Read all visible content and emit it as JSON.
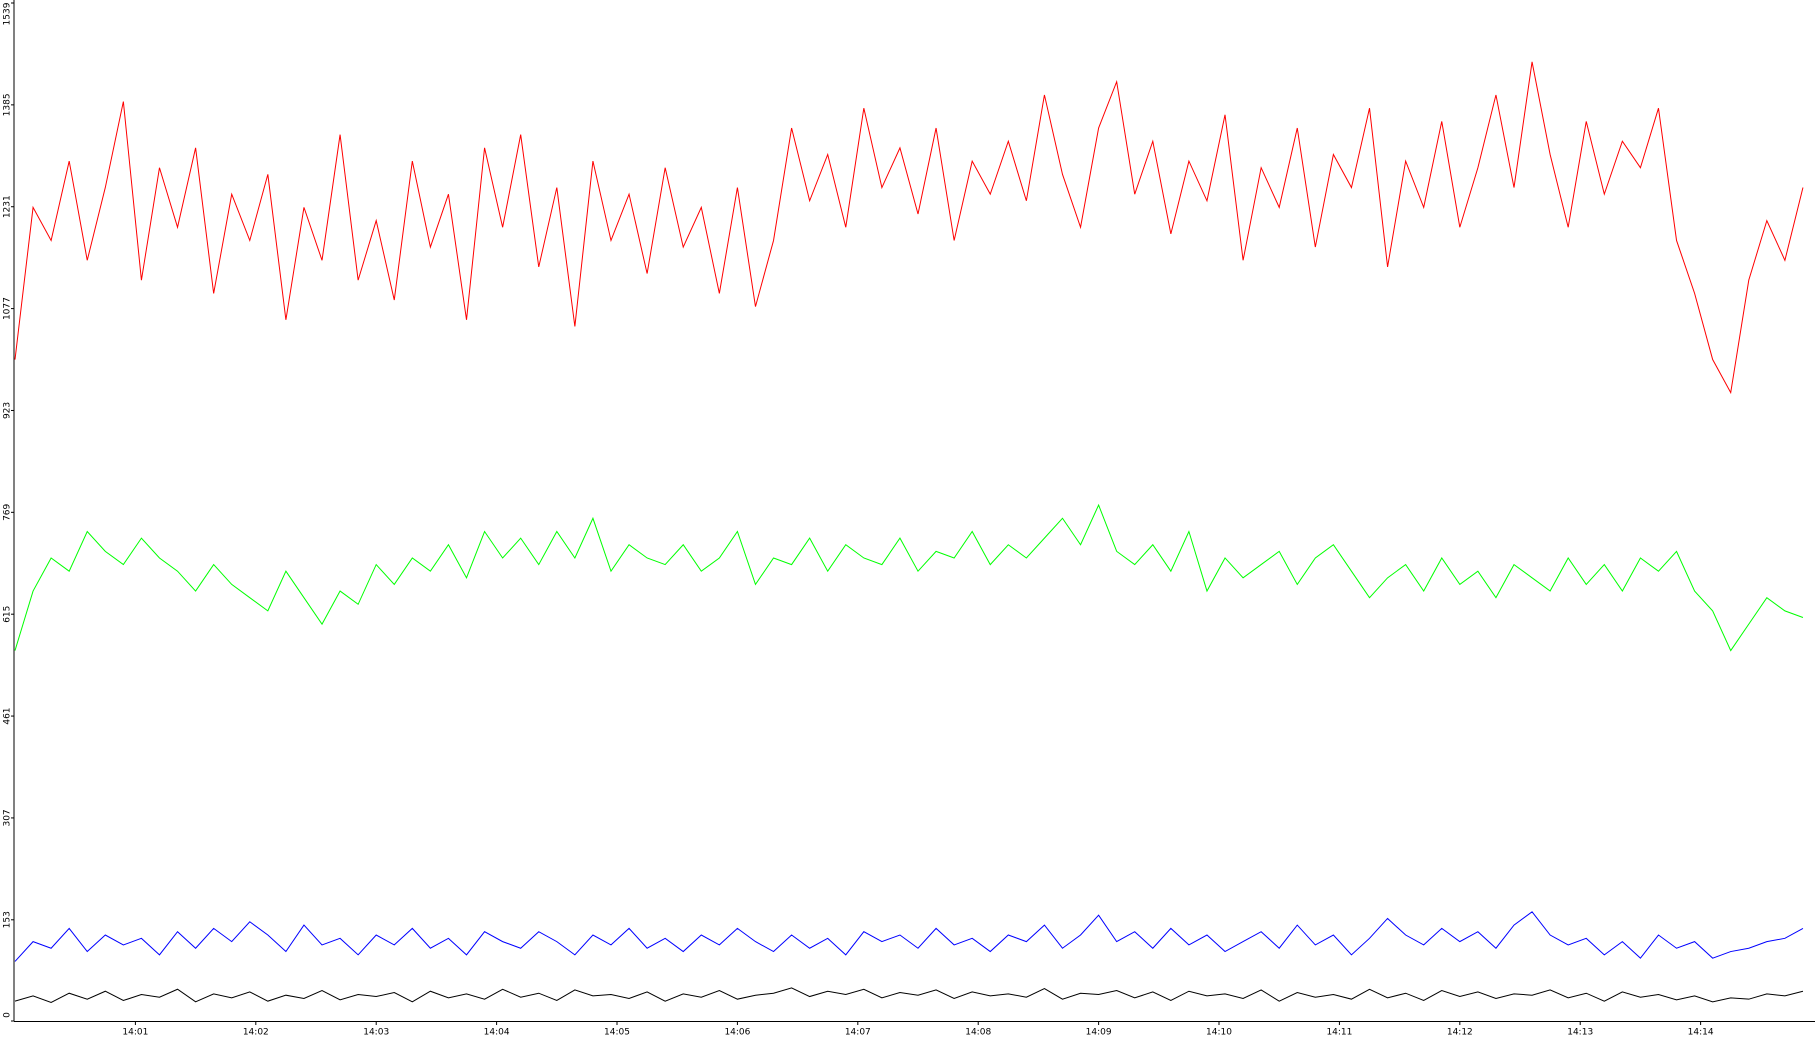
{
  "chart_data": {
    "type": "line",
    "x": [
      0,
      0.15,
      0.3,
      0.45,
      0.6,
      0.75,
      0.9,
      1.05,
      1.2,
      1.35,
      1.5,
      1.65,
      1.8,
      1.95,
      2.1,
      2.25,
      2.4,
      2.55,
      2.7,
      2.85,
      3.0,
      3.15,
      3.3,
      3.45,
      3.6,
      3.75,
      3.9,
      4.05,
      4.2,
      4.35,
      4.5,
      4.65,
      4.8,
      4.95,
      5.1,
      5.25,
      5.4,
      5.55,
      5.7,
      5.85,
      6.0,
      6.15,
      6.3,
      6.45,
      6.6,
      6.75,
      6.9,
      7.05,
      7.2,
      7.35,
      7.5,
      7.65,
      7.8,
      7.95,
      8.1,
      8.25,
      8.4,
      8.55,
      8.7,
      8.85,
      9.0,
      9.15,
      9.3,
      9.45,
      9.6,
      9.75,
      9.9,
      10.05,
      10.2,
      10.35,
      10.5,
      10.65,
      10.8,
      10.95,
      11.1,
      11.25,
      11.4,
      11.55,
      11.7,
      11.85,
      12.0,
      12.15,
      12.3,
      12.45,
      12.6,
      12.75,
      12.9,
      13.05,
      13.2,
      13.35,
      13.5,
      13.65,
      13.8,
      13.95,
      14.1,
      14.25,
      14.4,
      14.55,
      14.7,
      14.85
    ],
    "xlim": [
      0,
      14.95
    ],
    "xticks": [
      {
        "value": 1,
        "label": "14:01"
      },
      {
        "value": 2,
        "label": "14:02"
      },
      {
        "value": 3,
        "label": "14:03"
      },
      {
        "value": 4,
        "label": "14:04"
      },
      {
        "value": 5,
        "label": "14:05"
      },
      {
        "value": 6,
        "label": "14:06"
      },
      {
        "value": 7,
        "label": "14:07"
      },
      {
        "value": 8,
        "label": "14:08"
      },
      {
        "value": 9,
        "label": "14:09"
      },
      {
        "value": 10,
        "label": "14:10"
      },
      {
        "value": 11,
        "label": "14:11"
      },
      {
        "value": 12,
        "label": "14:12"
      },
      {
        "value": 13,
        "label": "14:13"
      },
      {
        "value": 14,
        "label": "14:14"
      }
    ],
    "ylim": [
      0,
      1539
    ],
    "yticks": [
      0,
      153,
      307,
      461,
      615,
      769,
      923,
      1077,
      1231,
      1385,
      1539
    ],
    "series": [
      {
        "color": "#ff0000",
        "values": [
          1000,
          1230,
          1180,
          1300,
          1150,
          1260,
          1390,
          1120,
          1290,
          1200,
          1320,
          1100,
          1250,
          1180,
          1280,
          1060,
          1230,
          1150,
          1340,
          1120,
          1210,
          1090,
          1300,
          1170,
          1250,
          1060,
          1320,
          1200,
          1340,
          1140,
          1260,
          1050,
          1300,
          1180,
          1250,
          1130,
          1290,
          1170,
          1230,
          1100,
          1260,
          1080,
          1180,
          1350,
          1240,
          1310,
          1200,
          1380,
          1260,
          1320,
          1220,
          1350,
          1180,
          1300,
          1250,
          1330,
          1240,
          1400,
          1280,
          1200,
          1350,
          1420,
          1250,
          1330,
          1190,
          1300,
          1240,
          1370,
          1150,
          1290,
          1230,
          1350,
          1170,
          1310,
          1260,
          1380,
          1140,
          1300,
          1230,
          1360,
          1200,
          1290,
          1400,
          1260,
          1450,
          1310,
          1200,
          1360,
          1250,
          1330,
          1290,
          1380,
          1180,
          1100,
          1000,
          950,
          1120,
          1210,
          1150,
          1260
        ]
      },
      {
        "color": "#00ff00",
        "values": [
          560,
          650,
          700,
          680,
          740,
          710,
          690,
          730,
          700,
          680,
          650,
          690,
          660,
          640,
          620,
          680,
          640,
          600,
          650,
          630,
          690,
          660,
          700,
          680,
          720,
          670,
          740,
          700,
          730,
          690,
          740,
          700,
          760,
          680,
          720,
          700,
          690,
          720,
          680,
          700,
          740,
          660,
          700,
          690,
          730,
          680,
          720,
          700,
          690,
          730,
          680,
          710,
          700,
          740,
          690,
          720,
          700,
          730,
          760,
          720,
          780,
          710,
          690,
          720,
          680,
          740,
          650,
          700,
          670,
          690,
          710,
          660,
          700,
          720,
          680,
          640,
          670,
          690,
          650,
          700,
          660,
          680,
          640,
          690,
          670,
          650,
          700,
          660,
          690,
          650,
          700,
          680,
          710,
          650,
          620,
          560,
          600,
          640,
          620,
          610
        ]
      },
      {
        "color": "#0000ff",
        "values": [
          90,
          120,
          110,
          140,
          105,
          130,
          115,
          125,
          100,
          135,
          110,
          140,
          120,
          150,
          130,
          105,
          145,
          115,
          125,
          100,
          130,
          115,
          140,
          110,
          125,
          100,
          135,
          120,
          110,
          135,
          120,
          100,
          130,
          115,
          140,
          110,
          125,
          105,
          130,
          115,
          140,
          120,
          105,
          130,
          110,
          125,
          100,
          135,
          120,
          130,
          110,
          140,
          115,
          125,
          105,
          130,
          120,
          145,
          110,
          130,
          160,
          120,
          135,
          110,
          140,
          115,
          130,
          105,
          120,
          135,
          110,
          145,
          115,
          130,
          100,
          125,
          155,
          130,
          115,
          140,
          120,
          135,
          110,
          145,
          165,
          130,
          115,
          125,
          100,
          120,
          95,
          130,
          110,
          120,
          95,
          105,
          110,
          120,
          125,
          140
        ]
      },
      {
        "color": "#000000",
        "values": [
          30,
          38,
          28,
          42,
          33,
          45,
          31,
          40,
          36,
          48,
          29,
          41,
          35,
          44,
          30,
          39,
          34,
          46,
          32,
          40,
          37,
          43,
          29,
          45,
          35,
          41,
          33,
          48,
          36,
          42,
          31,
          47,
          38,
          40,
          34,
          44,
          30,
          41,
          36,
          46,
          33,
          39,
          42,
          50,
          37,
          45,
          40,
          48,
          35,
          43,
          39,
          47,
          34,
          44,
          38,
          41,
          36,
          49,
          33,
          42,
          40,
          46,
          35,
          44,
          31,
          45,
          38,
          41,
          34,
          47,
          30,
          43,
          36,
          40,
          33,
          48,
          35,
          42,
          31,
          46,
          37,
          44,
          34,
          41,
          39,
          47,
          35,
          42,
          30,
          44,
          36,
          40,
          32,
          38,
          29,
          35,
          33,
          41,
          38,
          45
        ]
      }
    ]
  }
}
